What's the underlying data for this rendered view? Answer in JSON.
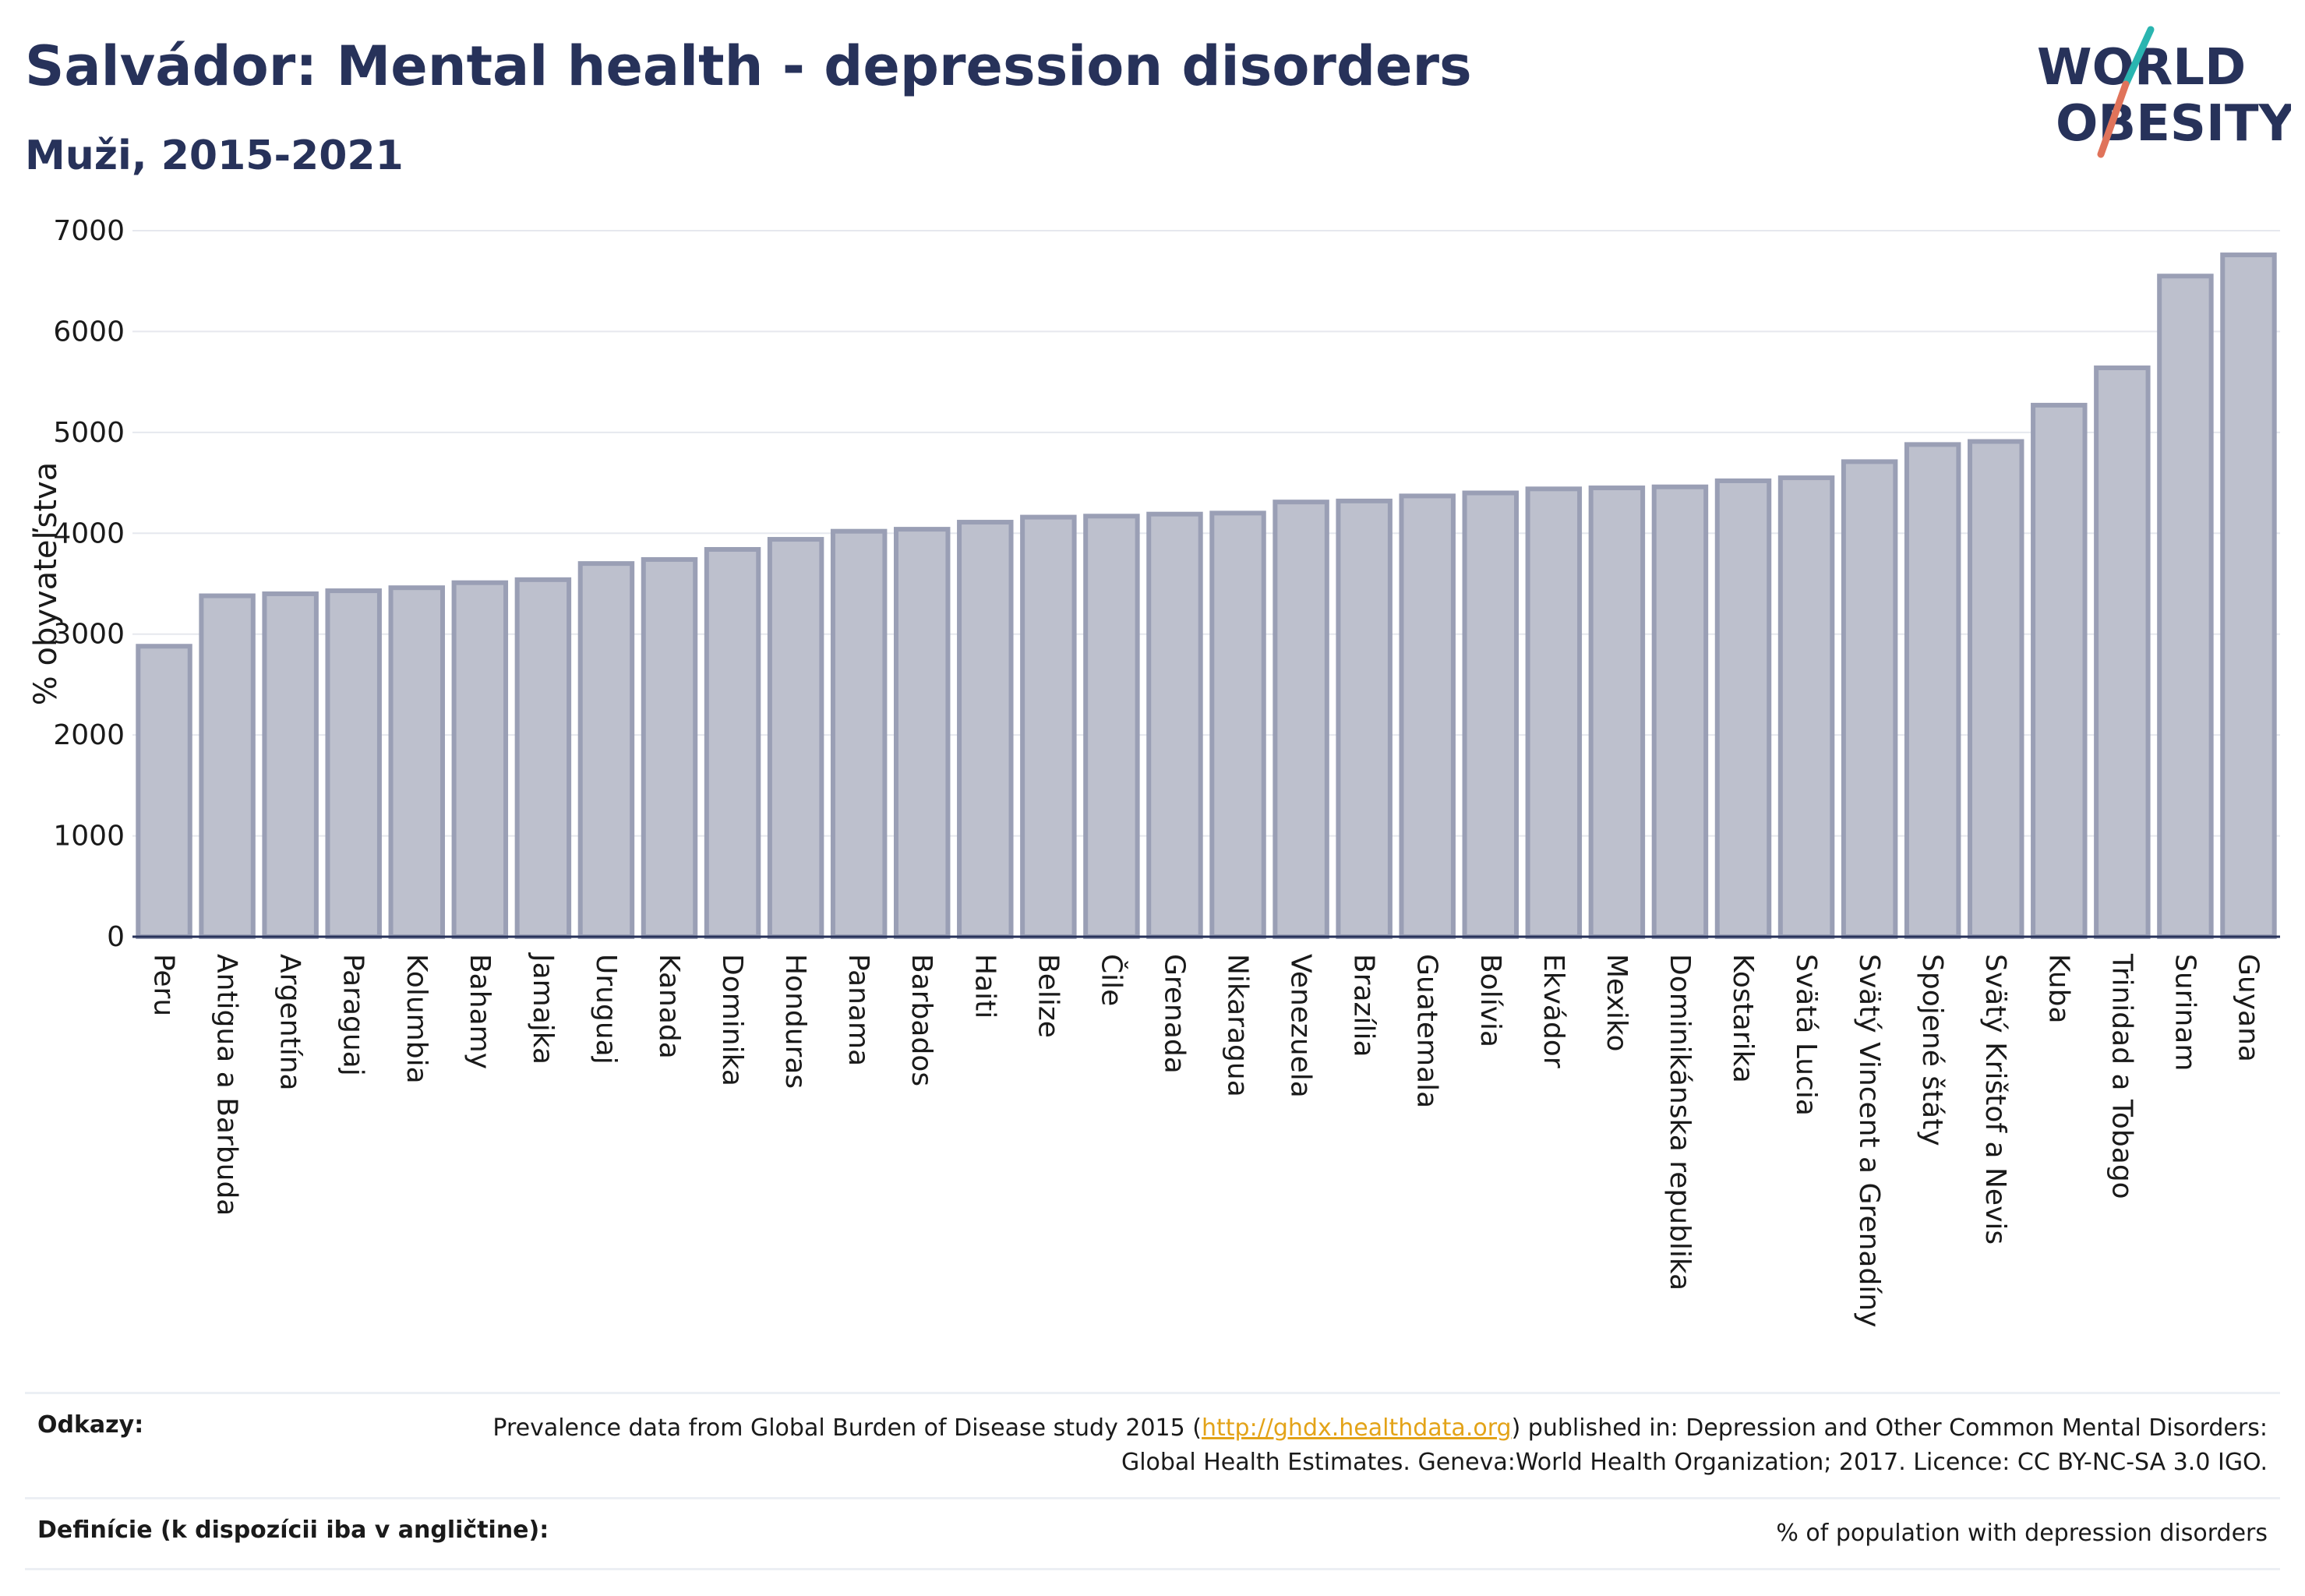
{
  "title": "Salvádor: Mental health - depression disorders",
  "subtitle": "Muži, 2015-2021",
  "logo": {
    "line1": "WORLD",
    "line2": "OBESITY"
  },
  "colors": {
    "title": "#27325a",
    "bar_fill": "#bdc0cd",
    "bar_stroke": "#9a9fb5",
    "accent_teal": "#2ab5b0",
    "accent_red": "#e0735a",
    "link": "#e3a318"
  },
  "chart_data": {
    "type": "bar",
    "ylabel": "% obyvateľstva",
    "ylim": [
      0,
      7000
    ],
    "yticks": [
      0,
      1000,
      2000,
      3000,
      4000,
      5000,
      6000,
      7000
    ],
    "grid": true,
    "categories": [
      "Peru",
      "Antigua a Barbuda",
      "Argentína",
      "Paraguaj",
      "Kolumbia",
      "Bahamy",
      "Jamajka",
      "Uruguaj",
      "Kanada",
      "Dominika",
      "Honduras",
      "Panama",
      "Barbados",
      "Haiti",
      "Belize",
      "Čile",
      "Grenada",
      "Nikaragua",
      "Venezuela",
      "Brazília",
      "Guatemala",
      "Bolívia",
      "Ekvádor",
      "Mexiko",
      "Dominikánska republika",
      "Kostarika",
      "Svätá Lucia",
      "Svätý Vincent a Grenadíny",
      "Spojené štáty",
      "Svätý Krištof a Nevis",
      "Kuba",
      "Trinidad a Tobago",
      "Surinam",
      "Guyana"
    ],
    "values": [
      2880,
      3380,
      3400,
      3430,
      3460,
      3510,
      3540,
      3700,
      3740,
      3840,
      3940,
      4020,
      4040,
      4110,
      4160,
      4170,
      4190,
      4200,
      4310,
      4320,
      4370,
      4400,
      4440,
      4450,
      4460,
      4520,
      4550,
      4710,
      4880,
      4910,
      5270,
      5640,
      6550,
      6760
    ]
  },
  "footer": {
    "refs_label": "Odkazy:",
    "refs_pre": "Prevalence data from Global Burden of Disease study 2015 (",
    "refs_link": "http://ghdx.healthdata.org",
    "refs_post": ") published in: Depression and Other Common Mental Disorders: Global Health Estimates. Geneva:World Health Organization; 2017. Licence: CC BY-NC-SA 3.0 IGO.",
    "def_label": "Definície (k dispozícii iba v angličtine):",
    "def_text": "% of population with depression disorders"
  }
}
